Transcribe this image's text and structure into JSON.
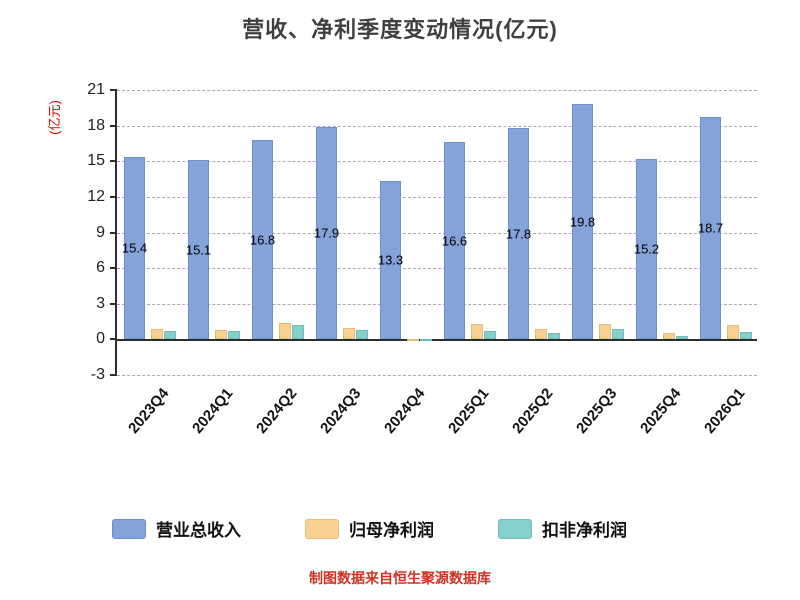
{
  "chart_data": {
    "type": "bar",
    "title": "营收、净利季度变动情况(亿元)",
    "ylabel": "(亿元)",
    "xlabel": "",
    "ylim": [
      -3,
      21
    ],
    "yticks": [
      21,
      18,
      15,
      12,
      9,
      6,
      3,
      0,
      -3
    ],
    "grid": "dashed-horizontal",
    "legend_position": "bottom",
    "categories": [
      "2023Q4",
      "2024Q1",
      "2024Q2",
      "2024Q3",
      "2024Q4",
      "2025Q1",
      "2025Q2",
      "2025Q3",
      "2025Q4",
      "2026Q1"
    ],
    "series": [
      {
        "key": "total-revenue",
        "name": "营业总收入",
        "color": "#84a3d8",
        "border_color": "#6e8fc7",
        "show_value_labels": true,
        "values": [
          15.4,
          15.1,
          16.8,
          17.9,
          13.3,
          16.6,
          17.8,
          19.8,
          15.2,
          18.7
        ]
      },
      {
        "key": "net-profit",
        "name": "归母净利润",
        "color": "#f9d190",
        "border_color": "#e6bd79",
        "show_value_labels": false,
        "values": [
          0.9,
          0.8,
          1.4,
          1.0,
          0.06,
          1.3,
          0.9,
          1.3,
          0.5,
          1.2
        ]
      },
      {
        "key": "deducted-net-profit",
        "name": "扣非净利润",
        "color": "#85d0cd",
        "border_color": "#6fbcb9",
        "show_value_labels": false,
        "values": [
          0.7,
          0.7,
          1.2,
          0.8,
          -0.08,
          0.7,
          0.5,
          0.9,
          0.3,
          0.6
        ]
      }
    ]
  },
  "footer": {
    "note": "制图数据来自恒生聚源数据库"
  },
  "colors": {
    "title": "#3f3f3f",
    "axis_title": "#e60000",
    "footer_note": "#cc3322",
    "axis_line": "#2e2e2e",
    "gridline": "#aaaaaa",
    "tick_label": "#222222",
    "bar_value_label": "#000000"
  }
}
